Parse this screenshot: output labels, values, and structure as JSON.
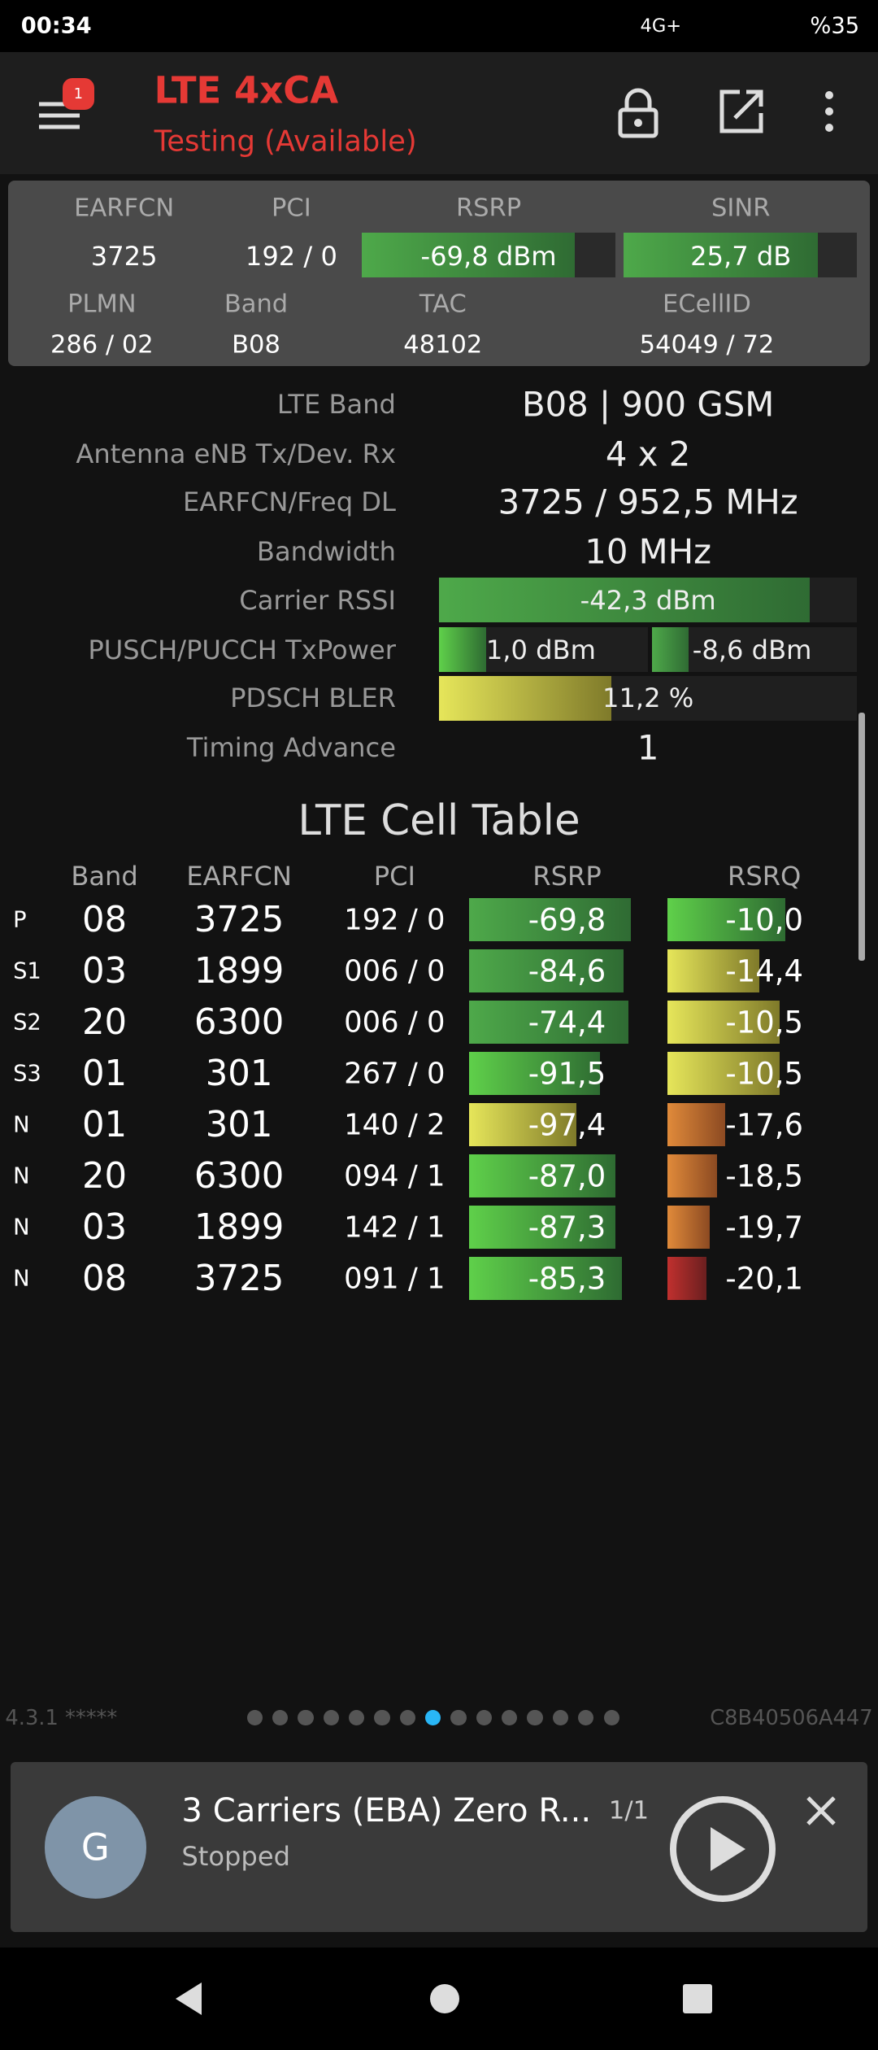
{
  "status_bar": {
    "time": "00:34",
    "network": "4G+",
    "battery": "%35"
  },
  "toolbar": {
    "badge": "1",
    "title": "LTE 4xCA",
    "subtitle": "Testing (Available)"
  },
  "summary": {
    "labels": [
      "EARFCN",
      "PCI",
      "RSRP",
      "SINR"
    ],
    "values": [
      "3725",
      "192 / 0",
      "-69,8 dBm",
      "25,7 dB"
    ],
    "labels2": [
      "PLMN",
      "Band",
      "TAC",
      "ECellID"
    ],
    "values2": [
      "286 / 02",
      "B08",
      "48102",
      "54049 / 72"
    ]
  },
  "details": [
    {
      "label": "LTE Band",
      "value": "B08 | 900 GSM"
    },
    {
      "label": "Antenna eNB Tx/Dev. Rx",
      "value": "4 x 2"
    },
    {
      "label": "EARFCN/Freq DL",
      "value": "3725 / 952,5 MHz"
    },
    {
      "label": "Bandwidth",
      "value": "10 MHz"
    },
    {
      "label": "Carrier RSSI",
      "value": "-42,3 dBm"
    },
    {
      "label": "PUSCH/PUCCH TxPower",
      "values": [
        "1,0 dBm",
        "-8,6 dBm"
      ]
    },
    {
      "label": "PDSCH BLER",
      "value": "11,2 %"
    },
    {
      "label": "Timing Advance",
      "value": "1"
    }
  ],
  "cell_table": {
    "title": "LTE Cell Table",
    "columns": [
      "Band",
      "EARFCN",
      "PCI",
      "RSRP",
      "RSRQ"
    ],
    "rows": [
      [
        "P",
        "08",
        "3725",
        "192 / 0",
        "-69,8",
        "-10,0"
      ],
      [
        "S1",
        "03",
        "1899",
        "006 / 0",
        "-84,6",
        "-14,4"
      ],
      [
        "S2",
        "20",
        "6300",
        "006 / 0",
        "-74,4",
        "-10,5"
      ],
      [
        "S3",
        "01",
        "301",
        "267 / 0",
        "-91,5",
        "-10,5"
      ],
      [
        "N",
        "01",
        "301",
        "140 / 2",
        "-97,4",
        "-17,6"
      ],
      [
        "N",
        "20",
        "6300",
        "094 / 1",
        "-87,0",
        "-18,5"
      ],
      [
        "N",
        "03",
        "1899",
        "142 / 1",
        "-87,3",
        "-19,7"
      ],
      [
        "N",
        "08",
        "3725",
        "091 / 1",
        "-85,3",
        "-20,1"
      ]
    ]
  },
  "footer": {
    "version": "4.3.1 *****",
    "device_id": "C8B40506A447"
  },
  "notification": {
    "avatar": "G",
    "title": "3 Carriers (EBA) Zero R...",
    "count": "1/1",
    "status": "Stopped"
  }
}
